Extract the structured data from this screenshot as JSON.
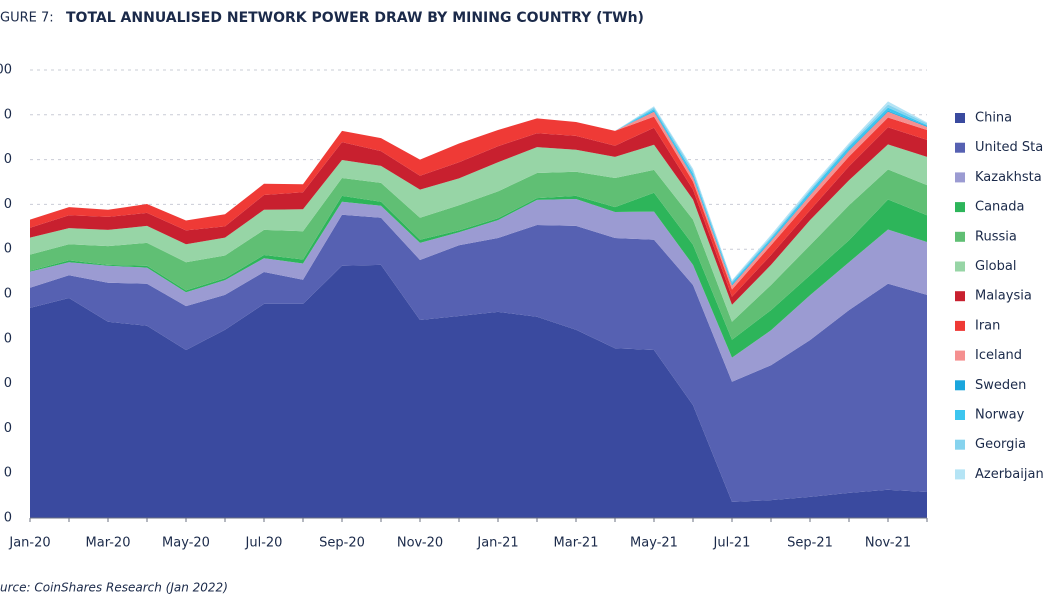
{
  "chart_data": {
    "type": "stacked-area",
    "figure_label": "GURE 7:",
    "title": "TOTAL ANNUALISED NETWORK POWER DRAW BY MINING COUNTRY (TWh)",
    "source": "urce: CoinShares Research (Jan 2022)",
    "categories": [
      "Jan-20",
      null,
      "Mar-20",
      null,
      "May-20",
      null,
      "Jul-20",
      null,
      "Sep-20",
      null,
      "Nov-20",
      null,
      "Jan-21",
      null,
      "Mar-21",
      null,
      "May-21",
      null,
      "Jul-21",
      null,
      "Sep-21",
      null,
      "Nov-21",
      null
    ],
    "ylim": [
      0,
      100
    ],
    "yticks": [
      {
        "value": 0,
        "label": "0"
      },
      {
        "value": 10,
        "label": "0"
      },
      {
        "value": 20,
        "label": "0"
      },
      {
        "value": 30,
        "label": "0"
      },
      {
        "value": 40,
        "label": "0"
      },
      {
        "value": 50,
        "label": "0"
      },
      {
        "value": 60,
        "label": "0"
      },
      {
        "value": 70,
        "label": "0"
      },
      {
        "value": 80,
        "label": "0"
      },
      {
        "value": 90,
        "label": "0"
      },
      {
        "value": 100,
        "label": "00"
      }
    ],
    "grid": true,
    "legend": "right",
    "series": [
      {
        "name": "China",
        "color": "#3a4a9f",
        "values": [
          46.9,
          49.1,
          43.8,
          42.9,
          37.5,
          42.0,
          47.8,
          47.8,
          56.3,
          56.5,
          44.2,
          45.1,
          46.0,
          44.9,
          42.0,
          37.9,
          37.5,
          25.2,
          3.6,
          4.0,
          4.7,
          5.6,
          6.3,
          5.8
        ]
      },
      {
        "name": "United Sta",
        "color": "#5661b2",
        "values": [
          4.5,
          5.1,
          8.7,
          9.4,
          9.8,
          7.8,
          7.1,
          5.4,
          11.4,
          10.5,
          13.4,
          15.8,
          16.5,
          20.5,
          23.2,
          24.6,
          24.6,
          26.8,
          26.8,
          30.1,
          35.0,
          40.8,
          46.0,
          44.0
        ]
      },
      {
        "name": "Kazakhsta",
        "color": "#9b9bd2",
        "values": [
          3.6,
          2.9,
          3.8,
          3.6,
          3.1,
          3.3,
          3.1,
          3.6,
          2.9,
          2.7,
          3.8,
          2.9,
          4.0,
          5.6,
          6.0,
          5.8,
          6.3,
          4.5,
          5.4,
          7.8,
          10.0,
          10.7,
          12.1,
          11.8
        ]
      },
      {
        "name": "Canada",
        "color": "#2db55a",
        "values": [
          0.2,
          0.4,
          0.2,
          0.4,
          0.4,
          0.4,
          0.7,
          0.9,
          1.3,
          0.9,
          0.7,
          0.4,
          0.4,
          0.4,
          0.7,
          1.1,
          4.2,
          4.5,
          4.0,
          4.5,
          4.5,
          4.9,
          6.7,
          6.0
        ]
      },
      {
        "name": "Russia",
        "color": "#60bf74",
        "values": [
          3.6,
          3.6,
          4.2,
          5.1,
          6.3,
          5.1,
          5.6,
          6.3,
          4.0,
          4.2,
          4.9,
          5.6,
          6.0,
          5.6,
          5.4,
          6.5,
          5.1,
          5.6,
          4.0,
          5.6,
          6.7,
          7.8,
          6.7,
          6.7
        ]
      },
      {
        "name": "Global",
        "color": "#97d5a6",
        "values": [
          3.8,
          3.6,
          3.6,
          3.8,
          4.0,
          4.0,
          4.5,
          4.9,
          4.0,
          3.8,
          6.3,
          6.0,
          6.5,
          5.8,
          4.9,
          4.7,
          5.6,
          4.5,
          3.8,
          4.5,
          5.6,
          5.6,
          5.6,
          6.3
        ]
      },
      {
        "name": "Malaysia",
        "color": "#c8202f",
        "values": [
          2.2,
          2.9,
          2.9,
          2.9,
          3.1,
          2.5,
          3.3,
          3.8,
          4.0,
          3.3,
          3.1,
          3.6,
          3.6,
          3.1,
          3.1,
          2.5,
          3.8,
          2.2,
          1.8,
          2.2,
          2.2,
          3.1,
          3.8,
          3.8
        ]
      },
      {
        "name": "Iran",
        "color": "#ef3a36",
        "values": [
          1.8,
          1.8,
          1.6,
          2.0,
          2.2,
          2.7,
          2.5,
          1.8,
          2.5,
          2.9,
          3.6,
          4.2,
          3.6,
          3.3,
          3.1,
          3.3,
          2.5,
          1.8,
          1.6,
          2.2,
          2.2,
          2.2,
          2.2,
          2.2
        ]
      },
      {
        "name": "Iceland",
        "color": "#f59090",
        "values": [
          0,
          0,
          0,
          0,
          0,
          0,
          0,
          0,
          0,
          0,
          0,
          0,
          0,
          0,
          0,
          0,
          1.1,
          0.9,
          0.9,
          0.9,
          1.1,
          1.3,
          1.3,
          0.7
        ]
      },
      {
        "name": "Sweden",
        "color": "#1aa6dd",
        "values": [
          0,
          0,
          0,
          0,
          0,
          0,
          0,
          0,
          0,
          0,
          0,
          0,
          0,
          0,
          0,
          0,
          0.2,
          0.2,
          0.2,
          0.2,
          0.2,
          0.2,
          0.2,
          0.2
        ]
      },
      {
        "name": "Norway",
        "color": "#3cc5ef",
        "values": [
          0,
          0,
          0,
          0,
          0,
          0,
          0,
          0,
          0,
          0,
          0,
          0,
          0,
          0,
          0,
          0,
          0.4,
          0.7,
          0.4,
          0.4,
          0.7,
          0.7,
          0.7,
          0.2
        ]
      },
      {
        "name": "Georgia",
        "color": "#86d3ee",
        "values": [
          0,
          0,
          0,
          0,
          0,
          0,
          0,
          0,
          0,
          0,
          0,
          0,
          0,
          0,
          0,
          0,
          0.4,
          0.7,
          0.4,
          0.4,
          0.4,
          0.4,
          0.7,
          0.4
        ]
      },
      {
        "name": "Azerbaijan",
        "color": "#b5e4f5",
        "values": [
          0,
          0,
          0,
          0,
          0,
          0,
          0,
          0,
          0,
          0,
          0,
          0,
          0,
          0,
          0,
          0,
          0.2,
          0.4,
          0.2,
          0.4,
          0.4,
          0.4,
          0.7,
          0.2
        ]
      }
    ]
  }
}
